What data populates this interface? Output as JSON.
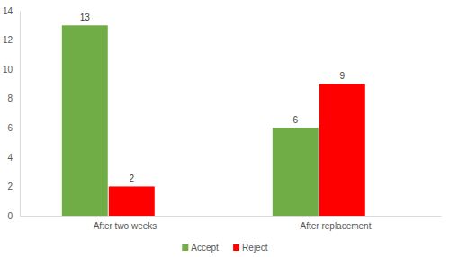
{
  "chart_data": {
    "type": "bar",
    "categories": [
      "After two weeks",
      "After replacement"
    ],
    "series": [
      {
        "name": "Accept",
        "color": "#70ad47",
        "values": [
          13,
          6
        ]
      },
      {
        "name": "Reject",
        "color": "#ff0000",
        "values": [
          2,
          9
        ]
      }
    ],
    "ylim": [
      0,
      14
    ],
    "yticks": [
      0,
      2,
      4,
      6,
      8,
      10,
      12,
      14
    ],
    "grid": false,
    "legend": "bottom",
    "data_labels": true
  }
}
